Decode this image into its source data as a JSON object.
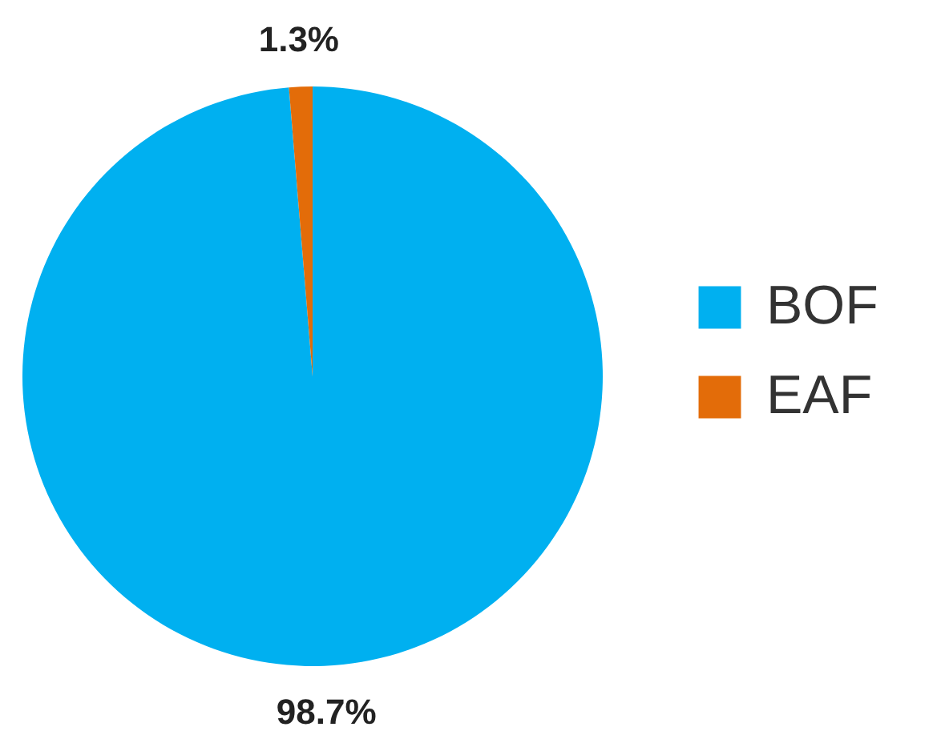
{
  "chart_data": {
    "type": "pie",
    "categories": [
      "BOF",
      "EAF"
    ],
    "values": [
      98.7,
      1.3
    ],
    "colors": [
      "#00b0f0",
      "#e36c09"
    ],
    "value_labels": [
      "98.7%",
      "1.3%"
    ],
    "legend": "right"
  }
}
